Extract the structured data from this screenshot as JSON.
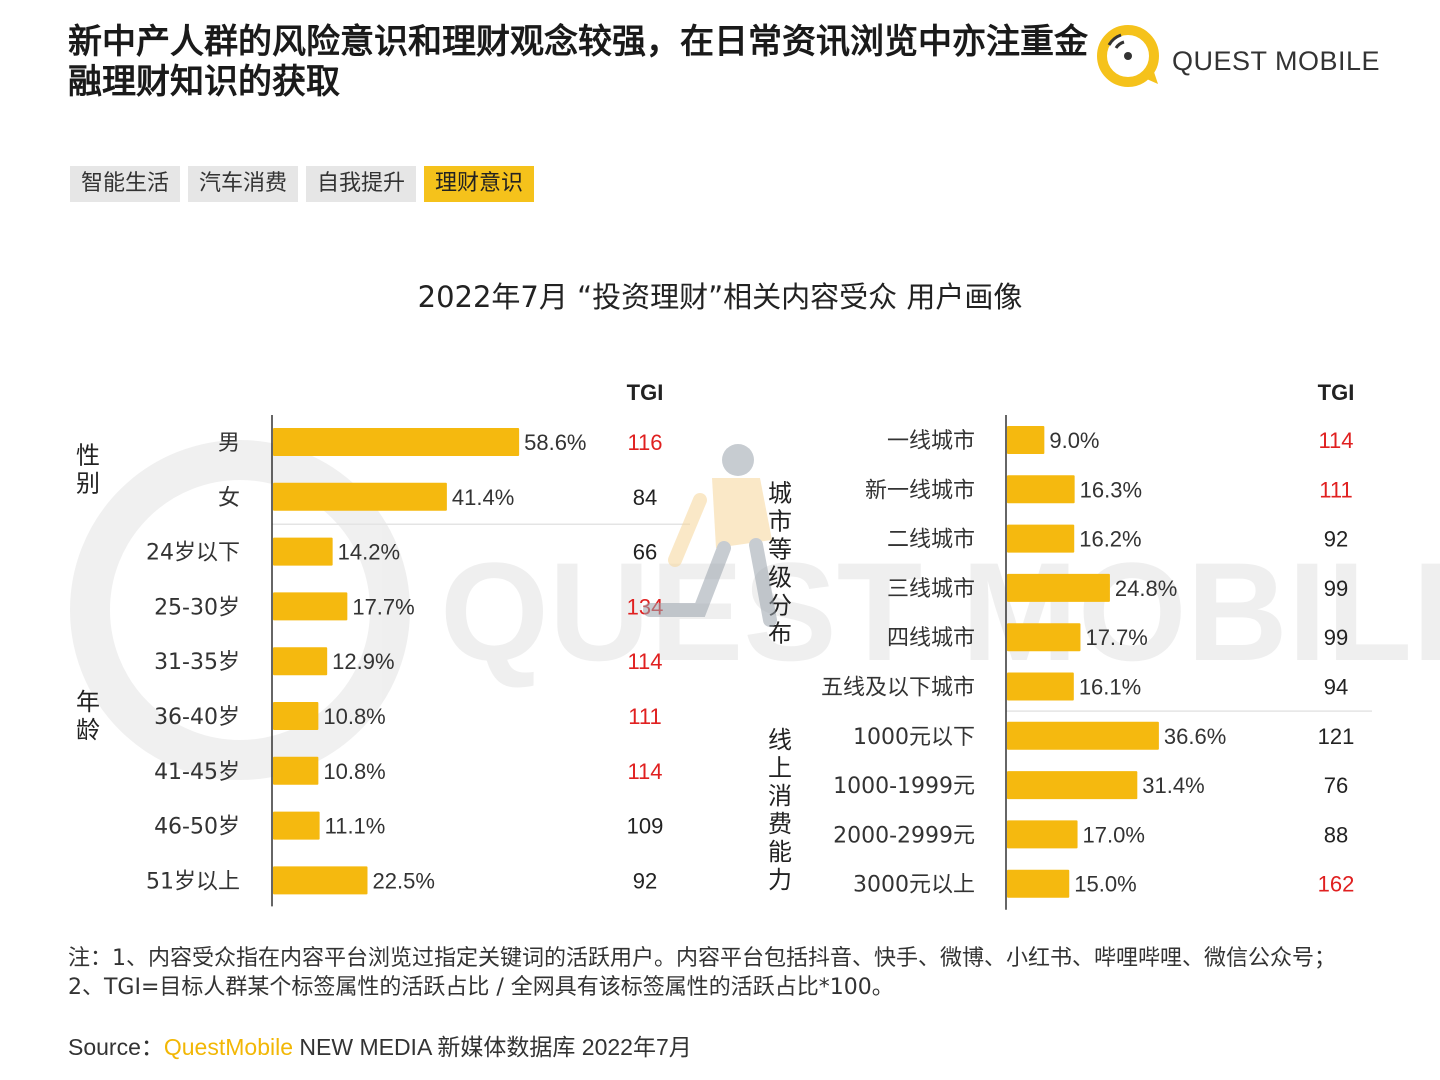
{
  "header": {
    "headline": "新中产人群的风险意识和理财观念较强，在日常资讯浏览中亦注重金融理财知识的获取",
    "logo_text": "QUEST MOBILE"
  },
  "tabs": [
    {
      "label": "智能生活",
      "active": false
    },
    {
      "label": "汽车消费",
      "active": false
    },
    {
      "label": "自我提升",
      "active": false
    },
    {
      "label": "理财意识",
      "active": true
    }
  ],
  "watermark_text": "QUEST MOBILE",
  "chart_data": {
    "type": "bar",
    "orientation": "horizontal",
    "title": "2022年7月 “投资理财”相关内容受众 用户画像",
    "tgi_header": "TGI",
    "highlight_color": "#e02020",
    "bar_color": "#f5b90f",
    "panels": [
      {
        "groups": [
          {
            "label": "性别",
            "items": [
              {
                "category": "男",
                "value": 58.6,
                "label": "58.6%",
                "tgi": 116,
                "highlight": true
              },
              {
                "category": "女",
                "value": 41.4,
                "label": "41.4%",
                "tgi": 84,
                "highlight": false
              }
            ]
          },
          {
            "label": "年龄",
            "items": [
              {
                "category": "24岁以下",
                "value": 14.2,
                "label": "14.2%",
                "tgi": 66,
                "highlight": false
              },
              {
                "category": "25-30岁",
                "value": 17.7,
                "label": "17.7%",
                "tgi": 134,
                "highlight": true
              },
              {
                "category": "31-35岁",
                "value": 12.9,
                "label": "12.9%",
                "tgi": 114,
                "highlight": true
              },
              {
                "category": "36-40岁",
                "value": 10.8,
                "label": "10.8%",
                "tgi": 111,
                "highlight": true
              },
              {
                "category": "41-45岁",
                "value": 10.8,
                "label": "10.8%",
                "tgi": 114,
                "highlight": true
              },
              {
                "category": "46-50岁",
                "value": 11.1,
                "label": "11.1%",
                "tgi": 109,
                "highlight": false
              },
              {
                "category": "51岁以上",
                "value": 22.5,
                "label": "22.5%",
                "tgi": 92,
                "highlight": false
              }
            ]
          }
        ]
      },
      {
        "groups": [
          {
            "label": "城市等级分布",
            "items": [
              {
                "category": "一线城市",
                "value": 9.0,
                "label": "9.0%",
                "tgi": 114,
                "highlight": true
              },
              {
                "category": "新一线城市",
                "value": 16.3,
                "label": "16.3%",
                "tgi": 111,
                "highlight": true
              },
              {
                "category": "二线城市",
                "value": 16.2,
                "label": "16.2%",
                "tgi": 92,
                "highlight": false
              },
              {
                "category": "三线城市",
                "value": 24.8,
                "label": "24.8%",
                "tgi": 99,
                "highlight": false
              },
              {
                "category": "四线城市",
                "value": 17.7,
                "label": "17.7%",
                "tgi": 99,
                "highlight": false
              },
              {
                "category": "五线及以下城市",
                "value": 16.1,
                "label": "16.1%",
                "tgi": 94,
                "highlight": false
              }
            ]
          },
          {
            "label": "线上消费能力",
            "items": [
              {
                "category": "1000元以下",
                "value": 36.6,
                "label": "36.6%",
                "tgi": 121,
                "highlight": false
              },
              {
                "category": "1000-1999元",
                "value": 31.4,
                "label": "31.4%",
                "tgi": 76,
                "highlight": false
              },
              {
                "category": "2000-2999元",
                "value": 17.0,
                "label": "17.0%",
                "tgi": 88,
                "highlight": false
              },
              {
                "category": "3000元以上",
                "value": 15.0,
                "label": "15.0%",
                "tgi": 162,
                "highlight": true
              }
            ]
          }
        ]
      }
    ]
  },
  "footer": {
    "note": "注：1、内容受众指在内容平台浏览过指定关键词的活跃用户。内容平台包括抖音、快手、微博、小红书、哔哩哔哩、微信公众号；2、TGI=目标人群某个标签属性的活跃占比 / 全网具有该标签属性的活跃占比*100。",
    "source_prefix": "Source：",
    "source_brand": "QuestMobile",
    "source_rest": " NEW MEDIA 新媒体数据库 2022年7月"
  }
}
